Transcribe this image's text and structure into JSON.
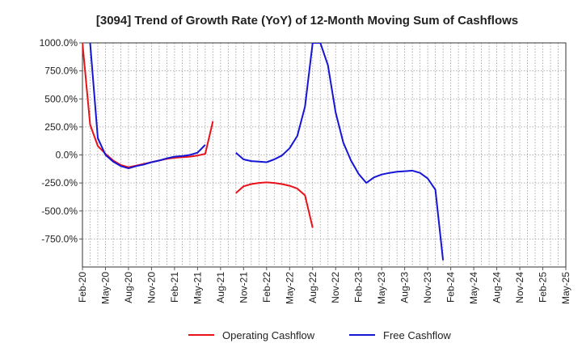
{
  "chart_data": {
    "type": "line",
    "title": "[3094]  Trend of Growth Rate (YoY) of 12-Month Moving Sum of Cashflows",
    "xlabel": "",
    "ylabel": "",
    "ylim": [
      -1000,
      1000
    ],
    "y_ticks": [
      "1000.0%",
      "750.0%",
      "500.0%",
      "250.0%",
      "0.0%",
      "-250.0%",
      "-500.0%",
      "-750.0%"
    ],
    "y_tick_values": [
      1000,
      750,
      500,
      250,
      0,
      -250,
      -500,
      -750
    ],
    "x_ticks": [
      "Feb-20",
      "May-20",
      "Aug-20",
      "Nov-20",
      "Feb-21",
      "May-21",
      "Aug-21",
      "Nov-21",
      "Feb-22",
      "May-22",
      "Aug-22",
      "Nov-22",
      "Feb-23",
      "May-23",
      "Aug-23",
      "Nov-23",
      "Feb-24",
      "May-24",
      "Aug-24",
      "Nov-24",
      "Feb-25",
      "May-25"
    ],
    "x_range": [
      "Feb-20",
      "May-25"
    ],
    "grid": true,
    "legend_position": "bottom",
    "series": [
      {
        "name": "Operating Cashflow",
        "color": "#e8121b",
        "points": [
          [
            "Feb-20",
            1000
          ],
          [
            "Mar-20",
            270
          ],
          [
            "Apr-20",
            80
          ],
          [
            "May-20",
            10
          ],
          [
            "Jun-20",
            -50
          ],
          [
            "Jul-20",
            -90
          ],
          [
            "Aug-20",
            -110
          ],
          [
            "Sep-20",
            -95
          ],
          [
            "Oct-20",
            -80
          ],
          [
            "Nov-20",
            -65
          ],
          [
            "Dec-20",
            -50
          ],
          [
            "Jan-21",
            -35
          ],
          [
            "Feb-21",
            -25
          ],
          [
            "Mar-21",
            -20
          ],
          [
            "Apr-21",
            -15
          ],
          [
            "May-21",
            -5
          ],
          [
            "Jun-21",
            10
          ],
          [
            "Jul-21",
            300
          ],
          null,
          [
            "Oct-21",
            -340
          ],
          [
            "Nov-21",
            -280
          ],
          [
            "Dec-21",
            -260
          ],
          [
            "Jan-22",
            -250
          ],
          [
            "Feb-22",
            -245
          ],
          [
            "Mar-22",
            -250
          ],
          [
            "Apr-22",
            -260
          ],
          [
            "May-22",
            -275
          ],
          [
            "Jun-22",
            -300
          ],
          [
            "Jul-22",
            -360
          ],
          [
            "Aug-22",
            -650
          ]
        ]
      },
      {
        "name": "Free Cashflow",
        "color": "#1515d6",
        "points": [
          [
            "Mar-20",
            1000
          ],
          [
            "Apr-20",
            150
          ],
          [
            "May-20",
            0
          ],
          [
            "Jun-20",
            -60
          ],
          [
            "Jul-20",
            -100
          ],
          [
            "Aug-20",
            -120
          ],
          [
            "Sep-20",
            -100
          ],
          [
            "Oct-20",
            -85
          ],
          [
            "Nov-20",
            -65
          ],
          [
            "Dec-20",
            -50
          ],
          [
            "Jan-21",
            -30
          ],
          [
            "Feb-21",
            -15
          ],
          [
            "Mar-21",
            -10
          ],
          [
            "Apr-21",
            0
          ],
          [
            "May-21",
            20
          ],
          [
            "Jun-21",
            90
          ],
          null,
          [
            "Oct-21",
            20
          ],
          [
            "Nov-21",
            -40
          ],
          [
            "Dec-21",
            -55
          ],
          [
            "Jan-22",
            -60
          ],
          [
            "Feb-22",
            -65
          ],
          [
            "Mar-22",
            -40
          ],
          [
            "Apr-22",
            -5
          ],
          [
            "May-22",
            60
          ],
          [
            "Jun-22",
            170
          ],
          [
            "Jul-22",
            430
          ],
          [
            "Aug-22",
            1000
          ],
          [
            "Sep-22",
            1000
          ],
          [
            "Oct-22",
            800
          ],
          [
            "Nov-22",
            380
          ],
          [
            "Dec-22",
            110
          ],
          [
            "Jan-23",
            -50
          ],
          [
            "Feb-23",
            -170
          ],
          [
            "Mar-23",
            -250
          ],
          [
            "Apr-23",
            -200
          ],
          [
            "May-23",
            -175
          ],
          [
            "Jun-23",
            -160
          ],
          [
            "Jul-23",
            -150
          ],
          [
            "Aug-23",
            -145
          ],
          [
            "Sep-23",
            -140
          ],
          [
            "Oct-23",
            -160
          ],
          [
            "Nov-23",
            -210
          ],
          [
            "Dec-23",
            -310
          ],
          [
            "Jan-24",
            -940
          ]
        ]
      }
    ]
  }
}
